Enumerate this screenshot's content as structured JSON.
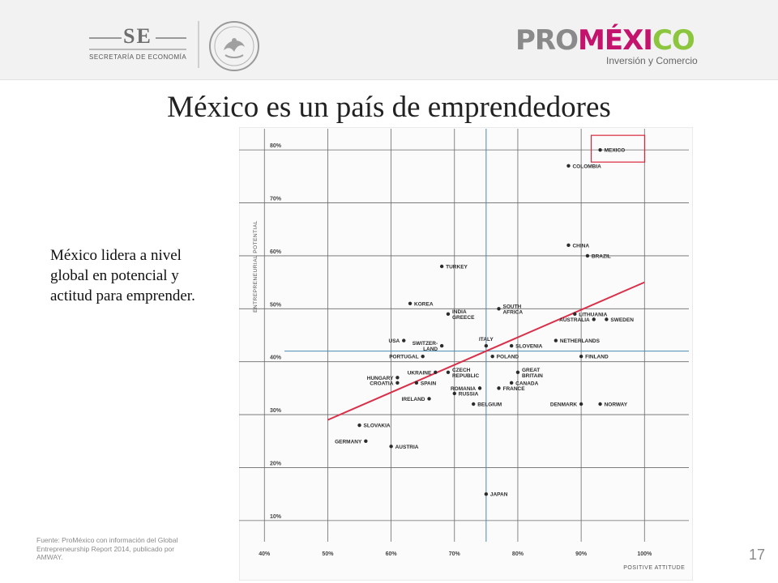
{
  "header": {
    "se_logo": {
      "mark": "SE",
      "subtitle": "SECRETARÍA DE ECONOMÍA"
    },
    "promexico_logo": {
      "pro": "PRO",
      "mexi": "MÉXI",
      "co": "CO",
      "tagline": "Inversión y Comercio"
    }
  },
  "slide": {
    "title": "México es un país de emprendedores",
    "caption": "México lidera a nivel global en potencial y actitud para emprender.",
    "source": "Fuente: ProMéxico con información del Global Entrepreneurship Report 2014, publicado por AMWAY.",
    "page_number": "17"
  },
  "colors": {
    "highlight_box": "#d9273a",
    "trend_line": "#d9304a",
    "reference_lines": "#4a8ab0",
    "grid": "#6a6a6a",
    "points": "#2b2b2b"
  },
  "chart_data": {
    "type": "scatter",
    "xlabel": "POSITIVE ATTITUDE",
    "ylabel": "ENTREPRENEURIAL POTENTIAL",
    "xlim": [
      36,
      107
    ],
    "ylim": [
      6,
      84
    ],
    "xticks": [
      40,
      50,
      60,
      70,
      80,
      90,
      100
    ],
    "yticks": [
      10,
      20,
      30,
      40,
      50,
      60,
      70,
      80
    ],
    "x_tick_labels": [
      "40%",
      "50%",
      "60%",
      "70%",
      "80%",
      "90%",
      "100%"
    ],
    "y_tick_labels": [
      "10%",
      "20%",
      "30%",
      "40%",
      "50%",
      "60%",
      "70%",
      "80%"
    ],
    "grid": true,
    "reference_lines": {
      "x": 75,
      "y": 42
    },
    "trend_line": {
      "x": [
        50,
        100
      ],
      "y": [
        29,
        55
      ]
    },
    "highlight": "MEXICO",
    "points": [
      {
        "label": "MEXICO",
        "x": 93,
        "y": 80,
        "side": "right"
      },
      {
        "label": "COLOMBIA",
        "x": 88,
        "y": 77,
        "side": "right"
      },
      {
        "label": "CHINA",
        "x": 88,
        "y": 62,
        "side": "right"
      },
      {
        "label": "BRAZIL",
        "x": 91,
        "y": 60,
        "side": "right"
      },
      {
        "label": "TURKEY",
        "x": 68,
        "y": 58,
        "side": "right"
      },
      {
        "label": "KOREA",
        "x": 63,
        "y": 51,
        "side": "right"
      },
      {
        "label": "SOUTH AFRICA",
        "x": 77,
        "y": 50,
        "side": "right"
      },
      {
        "label": "INDIA GREECE",
        "x": 69,
        "y": 49,
        "side": "right"
      },
      {
        "label": "LITHUANIA",
        "x": 89,
        "y": 49,
        "side": "right"
      },
      {
        "label": "AUSTRALIA",
        "x": 92,
        "y": 48,
        "side": "left"
      },
      {
        "label": "SWEDEN",
        "x": 94,
        "y": 48,
        "side": "right"
      },
      {
        "label": "USA",
        "x": 62,
        "y": 44,
        "side": "left"
      },
      {
        "label": "SWITZER- LAND",
        "x": 68,
        "y": 43,
        "side": "left"
      },
      {
        "label": "ITALY",
        "x": 75,
        "y": 43,
        "side": "above"
      },
      {
        "label": "SLOVENIA",
        "x": 79,
        "y": 43,
        "side": "right"
      },
      {
        "label": "NETHERLANDS",
        "x": 86,
        "y": 44,
        "side": "right"
      },
      {
        "label": "PORTUGAL",
        "x": 65,
        "y": 41,
        "side": "left"
      },
      {
        "label": "POLAND",
        "x": 76,
        "y": 41,
        "side": "right"
      },
      {
        "label": "FINLAND",
        "x": 90,
        "y": 41,
        "side": "right"
      },
      {
        "label": "UKRAINE",
        "x": 67,
        "y": 38,
        "side": "left"
      },
      {
        "label": "CZECH REPUBLIC",
        "x": 69,
        "y": 38,
        "side": "right"
      },
      {
        "label": "GREAT BRITAIN",
        "x": 80,
        "y": 38,
        "side": "right"
      },
      {
        "label": "HUNGARY",
        "x": 61,
        "y": 37,
        "side": "left"
      },
      {
        "label": "CROATIA",
        "x": 61,
        "y": 36,
        "side": "left"
      },
      {
        "label": "SPAIN",
        "x": 64,
        "y": 36,
        "side": "right"
      },
      {
        "label": "CANADA",
        "x": 79,
        "y": 36,
        "side": "right"
      },
      {
        "label": "ROMANIA",
        "x": 74,
        "y": 35,
        "side": "left"
      },
      {
        "label": "FRANCE",
        "x": 77,
        "y": 35,
        "side": "right"
      },
      {
        "label": "RUSSIA",
        "x": 70,
        "y": 34,
        "side": "right"
      },
      {
        "label": "IRELAND",
        "x": 66,
        "y": 33,
        "side": "left"
      },
      {
        "label": "BELGIUM",
        "x": 73,
        "y": 32,
        "side": "right"
      },
      {
        "label": "DENMARK",
        "x": 90,
        "y": 32,
        "side": "left"
      },
      {
        "label": "NORWAY",
        "x": 93,
        "y": 32,
        "side": "right"
      },
      {
        "label": "SLOVAKIA",
        "x": 55,
        "y": 28,
        "side": "right"
      },
      {
        "label": "GERMANY",
        "x": 56,
        "y": 25,
        "side": "left"
      },
      {
        "label": "AUSTRIA",
        "x": 60,
        "y": 24,
        "side": "right"
      },
      {
        "label": "JAPAN",
        "x": 75,
        "y": 15,
        "side": "right"
      }
    ]
  }
}
